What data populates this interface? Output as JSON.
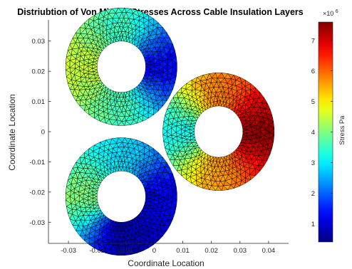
{
  "chart_data": {
    "type": "heatmap",
    "title": "Distriubtion of Von Misses Stresses Across Cable Insulation Layers",
    "xlabel": "Coordinate Location",
    "ylabel": "Coordinate Location",
    "xlim": [
      -0.037,
      0.047
    ],
    "ylim": [
      -0.037,
      0.037
    ],
    "xticks": [
      "-0.03",
      "-0.02",
      "-0.01",
      "0",
      "0.01",
      "0.02",
      "0.03",
      "0.04"
    ],
    "yticks": [
      "0.03",
      "0.02",
      "0.01",
      "0",
      "-0.01",
      "-0.02",
      "-0.03"
    ],
    "xtick_values": [
      -0.03,
      -0.02,
      -0.01,
      0,
      0.01,
      0.02,
      0.03,
      0.04
    ],
    "ytick_values": [
      0.03,
      0.02,
      0.01,
      0,
      -0.01,
      -0.02,
      -0.03
    ],
    "colormap": "jet",
    "colorbar": {
      "label": "Stress Pa",
      "exponent_label": "×10",
      "exponent_power": "6",
      "range": [
        0.4,
        7.6
      ],
      "ticks": [
        "1",
        "2",
        "3",
        "4",
        "5",
        "6",
        "7"
      ],
      "tick_values": [
        1,
        2,
        3,
        4,
        5,
        6,
        7
      ]
    },
    "rings": [
      {
        "name": "upper-left cable",
        "center": [
          -0.0115,
          0.0215
        ],
        "outer_radius": 0.0195,
        "inner_radius": 0.0085,
        "stress_samples": [
          {
            "position": "left",
            "value": 4.5
          },
          {
            "position": "top",
            "value": 3.5
          },
          {
            "position": "right",
            "value": 1.3
          },
          {
            "position": "bottom",
            "value": 3.6
          }
        ]
      },
      {
        "name": "right cable",
        "center": [
          0.0225,
          0.0
        ],
        "outer_radius": 0.0195,
        "inner_radius": 0.0085,
        "stress_samples": [
          {
            "position": "left",
            "value": 3.2
          },
          {
            "position": "top",
            "value": 5.8
          },
          {
            "position": "right",
            "value": 7.4
          },
          {
            "position": "bottom",
            "value": 5.6
          }
        ]
      },
      {
        "name": "lower-left cable",
        "center": [
          -0.0115,
          -0.0215
        ],
        "outer_radius": 0.0195,
        "inner_radius": 0.0085,
        "stress_samples": [
          {
            "position": "left",
            "value": 4.0
          },
          {
            "position": "top",
            "value": 2.9
          },
          {
            "position": "right",
            "value": 1.2
          },
          {
            "position": "bottom",
            "value": 0.8
          }
        ]
      }
    ],
    "grid": false
  }
}
